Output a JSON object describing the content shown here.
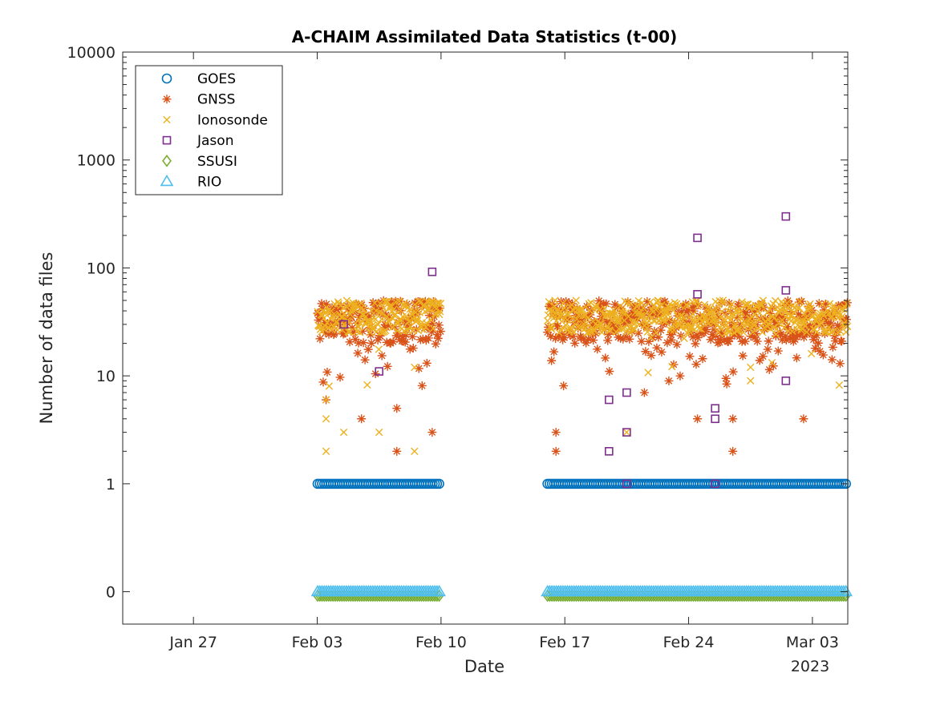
{
  "chart_data": {
    "type": "scatter",
    "title": "A-CHAIM Assimilated Data Statistics (t-00)",
    "xlabel": "Date",
    "ylabel": "Number of data files",
    "y_scale": "log",
    "y_ticks": [
      0,
      1,
      10,
      100,
      1000,
      10000
    ],
    "y_tick_labels": [
      "0",
      "1",
      "10",
      "100",
      "1000",
      "10000"
    ],
    "y_zero_note": "zero counts plotted at position one decade below 1",
    "xlim": [
      "2023-01-23",
      "2023-03-05"
    ],
    "x_ticks": [
      "2023-01-27",
      "2023-02-03",
      "2023-02-10",
      "2023-02-17",
      "2023-02-24",
      "2023-03-03"
    ],
    "x_tick_labels": [
      "Jan 27",
      "Feb 03",
      "Feb 10",
      "Feb 17",
      "Feb 24",
      "Mar 03"
    ],
    "x_year_label": "2023",
    "grid": false,
    "legend_position": "top-left",
    "data_segments": [
      {
        "start": "2023-02-03",
        "end": "2023-02-10"
      },
      {
        "start": "2023-02-16",
        "end": "2023-02-25"
      },
      {
        "start": "2023-02-25",
        "end": "2023-03-05"
      }
    ],
    "series": [
      {
        "name": "GOES",
        "marker": "circle",
        "color": "#0072BD",
        "typical_value": 1,
        "notes": "approximately 1 file per time step throughout each data segment"
      },
      {
        "name": "GNSS",
        "marker": "asterisk",
        "color": "#D95319",
        "typical_range": [
          20,
          50
        ],
        "low_points": [
          {
            "x": "2023-02-03",
            "y": 6
          },
          {
            "x": "2023-02-05",
            "y": 4
          },
          {
            "x": "2023-02-07",
            "y": 2
          },
          {
            "x": "2023-02-07",
            "y": 5
          },
          {
            "x": "2023-02-09",
            "y": 3
          },
          {
            "x": "2023-02-16",
            "y": 2
          },
          {
            "x": "2023-02-16",
            "y": 3
          },
          {
            "x": "2023-02-21",
            "y": 7
          },
          {
            "x": "2023-02-24",
            "y": 4
          },
          {
            "x": "2023-02-26",
            "y": 2
          },
          {
            "x": "2023-02-26",
            "y": 4
          },
          {
            "x": "2023-03-02",
            "y": 4
          }
        ]
      },
      {
        "name": "Ionosonde",
        "marker": "x",
        "color": "#EDB120",
        "typical_range": [
          25,
          50
        ],
        "low_points": [
          {
            "x": "2023-02-03",
            "y": 2
          },
          {
            "x": "2023-02-03",
            "y": 4
          },
          {
            "x": "2023-02-03",
            "y": 6
          },
          {
            "x": "2023-02-04",
            "y": 3
          },
          {
            "x": "2023-02-06",
            "y": 3
          },
          {
            "x": "2023-02-08",
            "y": 2
          },
          {
            "x": "2023-02-08",
            "y": 12
          },
          {
            "x": "2023-02-20",
            "y": 3
          },
          {
            "x": "2023-02-27",
            "y": 9
          },
          {
            "x": "2023-02-27",
            "y": 12
          }
        ]
      },
      {
        "name": "Jason",
        "marker": "square",
        "color": "#7E2F8E",
        "points": [
          {
            "x": "2023-02-04",
            "y": 30
          },
          {
            "x": "2023-02-06",
            "y": 11
          },
          {
            "x": "2023-02-09",
            "y": 92
          },
          {
            "x": "2023-02-19",
            "y": 6
          },
          {
            "x": "2023-02-19",
            "y": 2
          },
          {
            "x": "2023-02-20",
            "y": 7
          },
          {
            "x": "2023-02-20",
            "y": 3
          },
          {
            "x": "2023-02-20",
            "y": 1
          },
          {
            "x": "2023-02-24",
            "y": 190
          },
          {
            "x": "2023-02-24",
            "y": 57
          },
          {
            "x": "2023-02-25",
            "y": 5
          },
          {
            "x": "2023-02-25",
            "y": 4
          },
          {
            "x": "2023-02-25",
            "y": 1
          },
          {
            "x": "2023-03-01",
            "y": 300
          },
          {
            "x": "2023-03-01",
            "y": 62
          },
          {
            "x": "2023-03-01",
            "y": 9
          }
        ]
      },
      {
        "name": "SSUSI",
        "marker": "diamond",
        "color": "#77AC30",
        "typical_value": 0,
        "notes": "zero throughout each data segment"
      },
      {
        "name": "RIO",
        "marker": "triangle",
        "color": "#4DBEEE",
        "typical_value": 0,
        "notes": "zero throughout each data segment"
      }
    ]
  }
}
